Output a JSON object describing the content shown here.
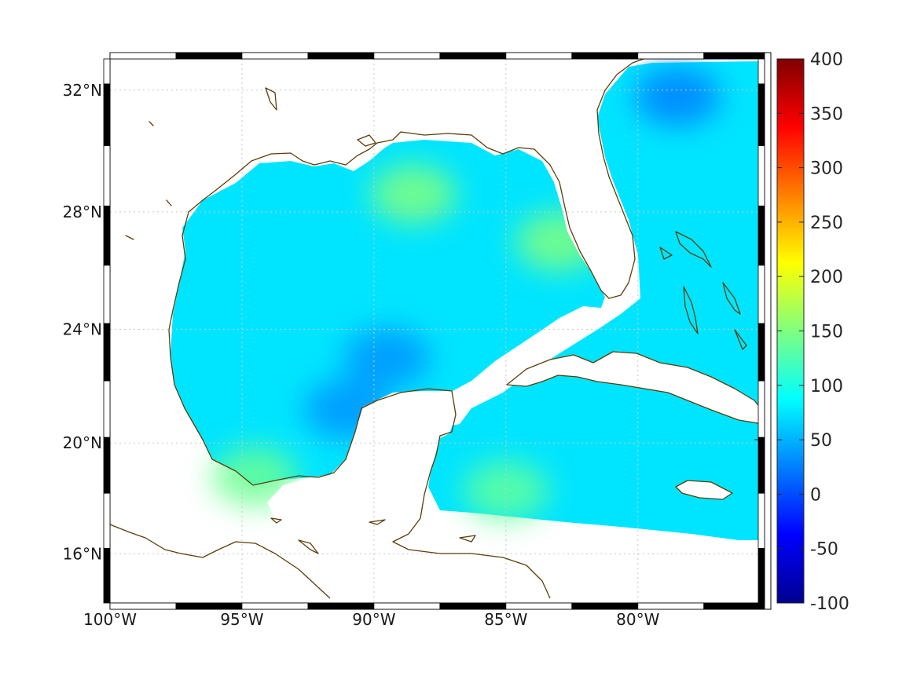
{
  "chart_data": {
    "type": "heatmap",
    "projection": "mercator",
    "region": "Gulf of Mexico and western Caribbean",
    "lon_range": [
      -100,
      -75.2
    ],
    "lat_range": [
      14.2,
      33
    ],
    "xticks": [
      {
        "value": -100,
        "label": "100°W"
      },
      {
        "value": -95,
        "label": "95°W"
      },
      {
        "value": -90,
        "label": "90°W"
      },
      {
        "value": -85,
        "label": "85°W"
      },
      {
        "value": -80,
        "label": "80°W"
      }
    ],
    "yticks": [
      {
        "value": 16,
        "label": "16°N"
      },
      {
        "value": 20,
        "label": "20°N"
      },
      {
        "value": 24,
        "label": "24°N"
      },
      {
        "value": 28,
        "label": "28°N"
      },
      {
        "value": 32,
        "label": "32°N"
      }
    ],
    "grid": true,
    "colorbar": {
      "colormap": "jet",
      "placement": "right",
      "range": [
        -100,
        400
      ],
      "ticks": [
        400,
        350,
        300,
        250,
        200,
        150,
        100,
        50,
        0,
        -50,
        -100
      ],
      "labels": [
        "400",
        "350",
        "300",
        "250",
        "200",
        "150",
        "100",
        "50",
        "0",
        "-50",
        "-100"
      ]
    },
    "field_summary": {
      "typical_range": [
        20,
        160
      ],
      "background_value": 75,
      "high_areas": [
        {
          "lon": -88.5,
          "lat": 28.6,
          "value": 150
        },
        {
          "lon": -83.0,
          "lat": 27.0,
          "value": 150
        },
        {
          "lon": -94.5,
          "lat": 18.8,
          "value": 140
        },
        {
          "lon": -85.0,
          "lat": 18.3,
          "value": 135
        }
      ],
      "low_areas": [
        {
          "lon": -78.5,
          "lat": 31.8,
          "value": 25
        },
        {
          "lon": -89.5,
          "lat": 23.0,
          "value": 35
        },
        {
          "lon": -91.0,
          "lat": 21.2,
          "value": 35
        }
      ]
    },
    "coastline_color": "#5c3d08"
  }
}
